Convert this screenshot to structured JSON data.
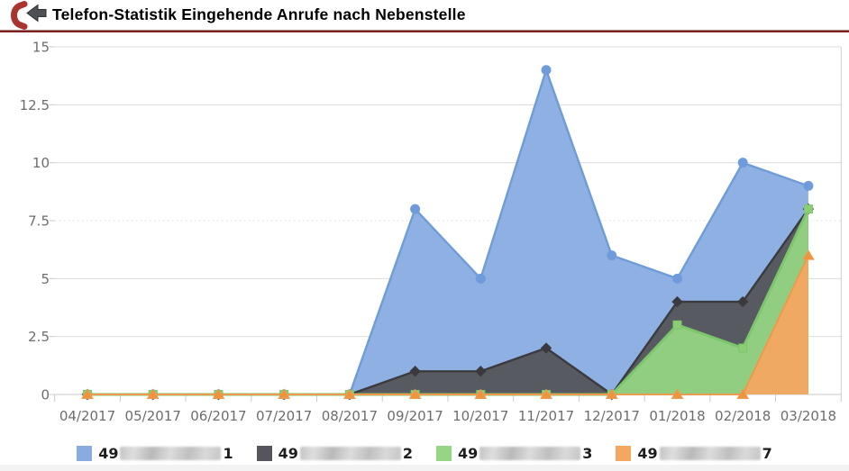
{
  "header": {
    "title": "Telefon-Statistik Eingehende Anrufe nach Nebenstelle",
    "icon": "incoming-call-phone-icon",
    "divider_color": "#7a201e",
    "phone_color": "#a93430",
    "arrow_color": "#4d5156"
  },
  "chart_data": {
    "type": "area",
    "title": "",
    "xlabel": "",
    "ylabel": "",
    "categories": [
      "04/2017",
      "05/2017",
      "06/2017",
      "07/2017",
      "08/2017",
      "09/2017",
      "10/2017",
      "11/2017",
      "12/2017",
      "01/2018",
      "02/2018",
      "03/2018"
    ],
    "series": [
      {
        "label_prefix": "49",
        "label_redacted": "anonymized-number",
        "label_suffix": "1",
        "marker": "circle",
        "fill_color": "#89ACE0",
        "line_color": "#6F9CD9",
        "marker_color": "#6F9BDC",
        "values": [
          0,
          0,
          0,
          0,
          0,
          8,
          5,
          14,
          6,
          5,
          10,
          9
        ]
      },
      {
        "label_prefix": "49",
        "label_redacted": "anonymized-number",
        "label_suffix": "2",
        "marker": "diamond",
        "fill_color": "#55555B",
        "line_color": "#3B3B3F",
        "marker_color": "#3A3A3E",
        "values": [
          0,
          0,
          0,
          0,
          0,
          1,
          1,
          2,
          0,
          4,
          4,
          8
        ]
      },
      {
        "label_prefix": "49",
        "label_redacted": "anonymized-number",
        "label_suffix": "3",
        "marker": "square",
        "fill_color": "#96D584",
        "line_color": "#7CC66B",
        "marker_color": "#8CCE73",
        "values": [
          0,
          0,
          0,
          0,
          0,
          0,
          0,
          0,
          0,
          3,
          2,
          8
        ]
      },
      {
        "label_prefix": "49",
        "label_redacted": "anonymized-number",
        "label_suffix": "7",
        "marker": "triangle",
        "fill_color": "#F4A761",
        "line_color": "#EE9A4C",
        "marker_color": "#EE9440",
        "values": [
          0,
          0,
          0,
          0,
          0,
          0,
          0,
          0,
          0,
          0,
          0,
          6
        ]
      }
    ],
    "ylim": [
      0,
      15
    ],
    "yticks": [
      0,
      2.5,
      5,
      7.5,
      10,
      12.5,
      15
    ],
    "grid": true,
    "dotted_gridline_value": 7.5,
    "legend_position": "bottom",
    "label_color": "#6d6d6d",
    "gridline_color": "#dcdcdc",
    "axis_color": "#c9c9c9"
  }
}
